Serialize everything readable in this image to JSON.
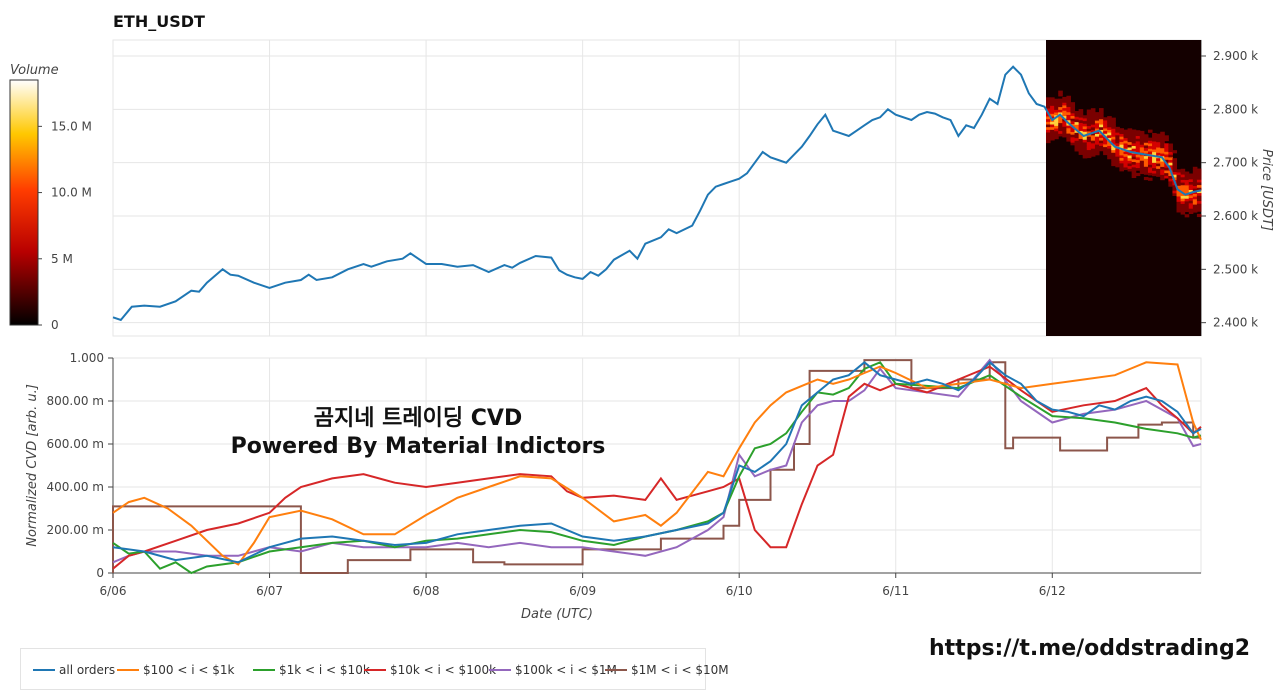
{
  "header": {
    "title": "ETH_USDT"
  },
  "overlay": {
    "line1": "곰지네 트레이딩 CVD",
    "line2": "Powered By Material Indictors",
    "url": "https://t.me/oddstrading2"
  },
  "colorbar": {
    "title": "Volume",
    "ticks": [
      "0",
      "5 M",
      "10.0 M",
      "15.0 M"
    ],
    "tick_values": [
      0,
      5,
      10,
      15
    ],
    "max": 18.5
  },
  "colors": {
    "all orders": "#1f77b4",
    "$100 < i < $1k": "#ff7f0e",
    "$1k < i < $10k": "#2ca02c",
    "$10k < i < $100k": "#d62728",
    "$100k < i < $1M": "#9467bd",
    "$1M < i < $10M": "#8c564b",
    "heatmap_bg": "#140000"
  },
  "chart_data": [
    {
      "type": "line",
      "title": "ETH_USDT",
      "ylabel": "Price [USDT]",
      "ylim": [
        2375,
        2930
      ],
      "yticks": [
        2400,
        2500,
        2600,
        2700,
        2800,
        2900
      ],
      "ytick_labels": [
        "2.400 k",
        "2.500 k",
        "2.600 k",
        "2.700 k",
        "2.800 k",
        "2.900 k"
      ],
      "xlim": [
        0,
        6.95
      ],
      "series": [
        {
          "name": "all orders",
          "x": [
            0,
            0.05,
            0.12,
            0.2,
            0.3,
            0.4,
            0.5,
            0.55,
            0.6,
            0.7,
            0.75,
            0.8,
            0.9,
            1.0,
            1.05,
            1.1,
            1.2,
            1.25,
            1.3,
            1.4,
            1.5,
            1.6,
            1.65,
            1.75,
            1.85,
            1.9,
            1.95,
            2.0,
            2.1,
            2.2,
            2.3,
            2.4,
            2.5,
            2.55,
            2.6,
            2.7,
            2.8,
            2.85,
            2.9,
            2.95,
            3.0,
            3.05,
            3.1,
            3.15,
            3.2,
            3.3,
            3.35,
            3.4,
            3.5,
            3.55,
            3.6,
            3.7,
            3.75,
            3.8,
            3.85,
            3.9,
            3.95,
            4.0,
            4.05,
            4.1,
            4.15,
            4.2,
            4.25,
            4.3,
            4.35,
            4.4,
            4.45,
            4.5,
            4.55,
            4.6,
            4.65,
            4.7,
            4.75,
            4.8,
            4.85,
            4.9,
            4.95,
            5.0,
            5.1,
            5.15,
            5.2,
            5.25,
            5.3,
            5.35,
            5.4,
            5.45,
            5.5,
            5.55,
            5.6,
            5.65,
            5.7,
            5.75,
            5.8,
            5.85,
            5.9,
            5.95,
            6.0,
            6.05,
            6.1,
            6.2,
            6.3,
            6.4,
            6.5,
            6.6,
            6.7,
            6.75,
            6.8,
            6.85,
            6.9,
            6.95
          ],
          "y": [
            2410,
            2405,
            2430,
            2432,
            2430,
            2440,
            2460,
            2458,
            2475,
            2500,
            2490,
            2488,
            2475,
            2465,
            2470,
            2475,
            2480,
            2490,
            2480,
            2485,
            2500,
            2510,
            2505,
            2515,
            2520,
            2530,
            2520,
            2510,
            2510,
            2505,
            2508,
            2495,
            2508,
            2503,
            2512,
            2525,
            2522,
            2498,
            2490,
            2485,
            2482,
            2495,
            2488,
            2500,
            2518,
            2535,
            2520,
            2548,
            2560,
            2575,
            2568,
            2582,
            2610,
            2640,
            2655,
            2660,
            2665,
            2670,
            2680,
            2700,
            2720,
            2710,
            2705,
            2700,
            2715,
            2730,
            2750,
            2772,
            2790,
            2760,
            2755,
            2750,
            2760,
            2770,
            2780,
            2785,
            2800,
            2790,
            2780,
            2790,
            2795,
            2792,
            2785,
            2780,
            2750,
            2770,
            2765,
            2790,
            2820,
            2810,
            2865,
            2880,
            2865,
            2830,
            2810,
            2805,
            2780,
            2790,
            2775,
            2750,
            2760,
            2730,
            2720,
            2715,
            2710,
            2690,
            2650,
            2640,
            2645,
            2648
          ]
        }
      ]
    },
    {
      "type": "line",
      "xlabel": "Date (UTC)",
      "ylabel": "Normalized CVD [arb. u.]",
      "ylim": [
        0,
        1.0
      ],
      "xlim": [
        0,
        6.95
      ],
      "yticks": [
        0,
        0.2,
        0.4,
        0.6,
        0.8,
        1.0
      ],
      "ytick_labels": [
        "0",
        "200.00 m",
        "400.00 m",
        "600.00 m",
        "800.00 m",
        "1.000"
      ],
      "xticks": [
        0,
        1,
        2,
        3,
        4,
        5,
        6
      ],
      "xtick_labels": [
        "6/06",
        "6/07",
        "6/08",
        "6/09",
        "6/10",
        "6/11",
        "6/12"
      ],
      "series": [
        {
          "name": "all orders",
          "x": [
            0,
            0.2,
            0.4,
            0.6,
            0.8,
            1.0,
            1.2,
            1.4,
            1.6,
            1.8,
            2.0,
            2.2,
            2.4,
            2.6,
            2.8,
            3.0,
            3.2,
            3.4,
            3.6,
            3.8,
            3.9,
            4.0,
            4.1,
            4.2,
            4.3,
            4.4,
            4.5,
            4.6,
            4.7,
            4.8,
            4.9,
            5.0,
            5.1,
            5.2,
            5.3,
            5.4,
            5.5,
            5.6,
            5.7,
            5.8,
            5.9,
            6.0,
            6.1,
            6.2,
            6.3,
            6.4,
            6.5,
            6.6,
            6.7,
            6.8,
            6.9,
            6.95
          ],
          "y": [
            0.12,
            0.1,
            0.06,
            0.08,
            0.05,
            0.12,
            0.16,
            0.17,
            0.15,
            0.13,
            0.14,
            0.18,
            0.2,
            0.22,
            0.23,
            0.17,
            0.15,
            0.17,
            0.2,
            0.23,
            0.28,
            0.5,
            0.47,
            0.52,
            0.6,
            0.78,
            0.84,
            0.9,
            0.92,
            0.98,
            0.92,
            0.9,
            0.88,
            0.9,
            0.88,
            0.85,
            0.9,
            0.98,
            0.92,
            0.88,
            0.8,
            0.76,
            0.75,
            0.73,
            0.78,
            0.76,
            0.8,
            0.82,
            0.8,
            0.75,
            0.65,
            0.67
          ]
        },
        {
          "name": "$100 < i < $1k",
          "x": [
            0,
            0.1,
            0.2,
            0.35,
            0.5,
            0.7,
            0.8,
            0.9,
            1.0,
            1.2,
            1.4,
            1.6,
            1.8,
            2.0,
            2.2,
            2.4,
            2.6,
            2.8,
            3.0,
            3.2,
            3.4,
            3.5,
            3.6,
            3.8,
            3.9,
            4.0,
            4.1,
            4.2,
            4.3,
            4.4,
            4.5,
            4.6,
            4.7,
            4.8,
            4.9,
            5.0,
            5.2,
            5.4,
            5.6,
            5.8,
            6.0,
            6.2,
            6.4,
            6.6,
            6.8,
            6.9,
            6.95
          ],
          "y": [
            0.28,
            0.33,
            0.35,
            0.3,
            0.22,
            0.08,
            0.04,
            0.14,
            0.26,
            0.29,
            0.25,
            0.18,
            0.18,
            0.27,
            0.35,
            0.4,
            0.45,
            0.44,
            0.35,
            0.24,
            0.27,
            0.22,
            0.28,
            0.47,
            0.45,
            0.58,
            0.7,
            0.78,
            0.84,
            0.87,
            0.9,
            0.88,
            0.9,
            0.93,
            0.96,
            0.93,
            0.86,
            0.88,
            0.9,
            0.86,
            0.88,
            0.9,
            0.92,
            0.98,
            0.97,
            0.7,
            0.62
          ]
        },
        {
          "name": "$1k < i < $10k",
          "x": [
            0,
            0.1,
            0.2,
            0.3,
            0.4,
            0.5,
            0.6,
            0.8,
            1.0,
            1.2,
            1.4,
            1.6,
            1.8,
            2.0,
            2.2,
            2.4,
            2.6,
            2.8,
            3.0,
            3.2,
            3.4,
            3.6,
            3.8,
            3.9,
            4.0,
            4.1,
            4.2,
            4.3,
            4.4,
            4.5,
            4.6,
            4.7,
            4.8,
            4.9,
            5.0,
            5.2,
            5.4,
            5.6,
            5.8,
            6.0,
            6.2,
            6.4,
            6.6,
            6.8,
            6.9,
            6.95
          ],
          "y": [
            0.14,
            0.09,
            0.1,
            0.02,
            0.05,
            0.0,
            0.03,
            0.05,
            0.1,
            0.12,
            0.14,
            0.15,
            0.12,
            0.15,
            0.16,
            0.18,
            0.2,
            0.19,
            0.15,
            0.13,
            0.17,
            0.2,
            0.24,
            0.28,
            0.45,
            0.58,
            0.6,
            0.65,
            0.75,
            0.84,
            0.83,
            0.86,
            0.95,
            0.98,
            0.88,
            0.87,
            0.86,
            0.92,
            0.82,
            0.73,
            0.72,
            0.7,
            0.67,
            0.65,
            0.63,
            0.64
          ]
        },
        {
          "name": "$10k < i < $100k",
          "x": [
            0,
            0.1,
            0.2,
            0.4,
            0.6,
            0.8,
            1.0,
            1.1,
            1.2,
            1.4,
            1.6,
            1.8,
            2.0,
            2.2,
            2.4,
            2.6,
            2.8,
            2.9,
            3.0,
            3.2,
            3.4,
            3.5,
            3.6,
            3.8,
            3.9,
            4.0,
            4.1,
            4.2,
            4.3,
            4.4,
            4.5,
            4.6,
            4.7,
            4.8,
            4.9,
            5.0,
            5.2,
            5.4,
            5.6,
            5.8,
            6.0,
            6.2,
            6.4,
            6.6,
            6.7,
            6.8,
            6.9,
            6.95
          ],
          "y": [
            0.02,
            0.08,
            0.1,
            0.15,
            0.2,
            0.23,
            0.28,
            0.35,
            0.4,
            0.44,
            0.46,
            0.42,
            0.4,
            0.42,
            0.44,
            0.46,
            0.45,
            0.38,
            0.35,
            0.36,
            0.34,
            0.44,
            0.34,
            0.38,
            0.4,
            0.44,
            0.2,
            0.12,
            0.12,
            0.32,
            0.5,
            0.55,
            0.82,
            0.88,
            0.85,
            0.88,
            0.84,
            0.9,
            0.96,
            0.85,
            0.75,
            0.78,
            0.8,
            0.86,
            0.78,
            0.72,
            0.65,
            0.68
          ]
        },
        {
          "name": "$100k < i < $1M",
          "x": [
            0,
            0.1,
            0.2,
            0.4,
            0.6,
            0.8,
            1.0,
            1.2,
            1.4,
            1.6,
            1.8,
            2.0,
            2.2,
            2.4,
            2.6,
            2.8,
            3.0,
            3.2,
            3.4,
            3.6,
            3.8,
            3.9,
            4.0,
            4.1,
            4.2,
            4.3,
            4.4,
            4.5,
            4.6,
            4.7,
            4.8,
            4.9,
            5.0,
            5.2,
            5.4,
            5.6,
            5.8,
            6.0,
            6.2,
            6.4,
            6.6,
            6.8,
            6.9,
            6.95
          ],
          "y": [
            0.05,
            0.08,
            0.1,
            0.1,
            0.08,
            0.08,
            0.12,
            0.1,
            0.14,
            0.12,
            0.12,
            0.12,
            0.14,
            0.12,
            0.14,
            0.12,
            0.12,
            0.1,
            0.08,
            0.12,
            0.2,
            0.26,
            0.55,
            0.45,
            0.48,
            0.5,
            0.7,
            0.78,
            0.8,
            0.8,
            0.85,
            0.95,
            0.86,
            0.84,
            0.82,
            0.99,
            0.8,
            0.7,
            0.74,
            0.76,
            0.8,
            0.72,
            0.59,
            0.6
          ]
        },
        {
          "name": "$1M < i < $10M",
          "x": [
            0,
            0.0,
            0.9,
            1.2,
            1.2,
            1.5,
            1.5,
            1.9,
            1.9,
            2.3,
            2.3,
            2.5,
            2.5,
            3.0,
            3.0,
            3.5,
            3.5,
            3.9,
            3.9,
            4.0,
            4.0,
            4.2,
            4.2,
            4.35,
            4.35,
            4.45,
            4.45,
            4.8,
            4.8,
            5.1,
            5.1,
            5.4,
            5.4,
            5.6,
            5.6,
            5.7,
            5.7,
            5.75,
            5.75,
            6.05,
            6.05,
            6.35,
            6.35,
            6.55,
            6.55,
            6.7,
            6.7,
            6.9,
            6.9,
            6.95
          ],
          "y": [
            0,
            0.31,
            0.31,
            0.31,
            0.0,
            0.0,
            0.06,
            0.06,
            0.11,
            0.11,
            0.05,
            0.05,
            0.04,
            0.04,
            0.11,
            0.11,
            0.16,
            0.16,
            0.22,
            0.22,
            0.34,
            0.34,
            0.48,
            0.48,
            0.6,
            0.6,
            0.94,
            0.94,
            0.99,
            0.99,
            0.86,
            0.86,
            0.9,
            0.9,
            0.98,
            0.98,
            0.58,
            0.58,
            0.63,
            0.63,
            0.57,
            0.57,
            0.63,
            0.63,
            0.69,
            0.69,
            0.7,
            0.7,
            0.63,
            0.63
          ]
        }
      ]
    }
  ]
}
